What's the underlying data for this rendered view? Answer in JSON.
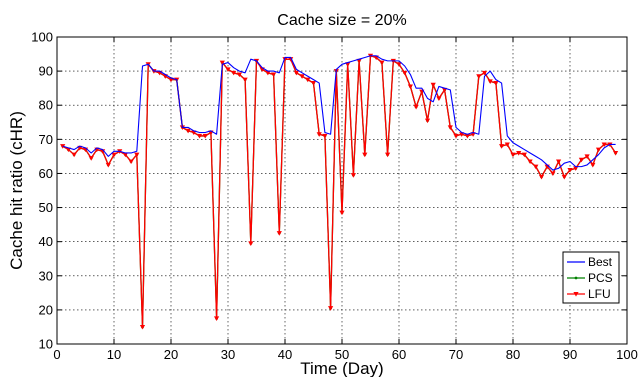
{
  "chart_data": {
    "type": "line",
    "title": "Cache size = 20%",
    "xlabel": "Time (Day)",
    "ylabel": "Cache hit ratio (cHR)",
    "xlim": [
      0,
      100
    ],
    "ylim": [
      10,
      100
    ],
    "xticks": [
      "0",
      "10",
      "20",
      "30",
      "40",
      "50",
      "60",
      "70",
      "80",
      "90",
      "100"
    ],
    "yticks": [
      "10",
      "20",
      "30",
      "40",
      "50",
      "60",
      "70",
      "80",
      "90",
      "100"
    ],
    "grid": true,
    "legend_position": "bottom-right",
    "colors": {
      "Best": "#0000ff",
      "PCS": "#008000",
      "LFU": "#ff0000"
    },
    "x": [
      1,
      2,
      3,
      4,
      5,
      6,
      7,
      8,
      9,
      10,
      11,
      12,
      13,
      14,
      15,
      16,
      17,
      18,
      19,
      20,
      21,
      22,
      23,
      24,
      25,
      26,
      27,
      28,
      29,
      30,
      31,
      32,
      33,
      34,
      35,
      36,
      37,
      38,
      39,
      40,
      41,
      42,
      43,
      44,
      45,
      46,
      47,
      48,
      49,
      50,
      51,
      52,
      53,
      54,
      55,
      56,
      57,
      58,
      59,
      60,
      61,
      62,
      63,
      64,
      65,
      66,
      67,
      68,
      69,
      70,
      71,
      72,
      73,
      74,
      75,
      76,
      77,
      78,
      79,
      80,
      81,
      82,
      83,
      84,
      85,
      86,
      87,
      88,
      89,
      90,
      91,
      92,
      93,
      94,
      95,
      96,
      97,
      98
    ],
    "series": [
      {
        "name": "Best",
        "values": [
          68,
          67.5,
          67,
          68,
          67.5,
          66,
          67.5,
          67,
          65,
          66.5,
          66.5,
          66,
          66,
          66.5,
          91.5,
          92,
          90,
          90,
          89,
          88,
          87.5,
          73.5,
          73.5,
          72.5,
          72,
          72,
          72.5,
          71.5,
          92,
          92.5,
          91,
          90,
          89.5,
          93.5,
          93,
          91,
          90,
          90,
          89.5,
          94,
          94,
          90.5,
          89.5,
          88.5,
          87.5,
          86.5,
          72,
          71.5,
          90.5,
          92,
          92.5,
          93,
          93.5,
          94,
          94.5,
          94.5,
          93.5,
          93,
          93,
          93,
          91.5,
          89,
          85,
          85,
          82,
          81,
          85.5,
          85,
          84.5,
          73.5,
          72,
          71.5,
          72,
          71.5,
          88.5,
          90,
          87.5,
          86.5,
          71,
          69,
          68,
          67,
          66,
          65,
          64,
          62.5,
          61,
          61.5,
          63,
          63.5,
          62,
          62,
          62.5,
          64,
          65.5,
          67.5,
          68.5,
          68.5
        ]
      },
      {
        "name": "PCS",
        "values": [
          68,
          67,
          65.5,
          67.5,
          67,
          64.5,
          67,
          66.5,
          62.5,
          65.5,
          66.5,
          65.5,
          63.5,
          65.5,
          15,
          92,
          90,
          89.5,
          88.5,
          87.5,
          87.5,
          73.5,
          72.5,
          72,
          71,
          71,
          72,
          17.5,
          92.5,
          90.5,
          89.5,
          89,
          87.5,
          39.5,
          93,
          90.5,
          89.5,
          89,
          42.5,
          93.5,
          93.5,
          89.5,
          88.5,
          87.5,
          86.5,
          71.5,
          71,
          20.5,
          90,
          48.5,
          92,
          59.5,
          93,
          65.5,
          94.5,
          94,
          92.5,
          65.5,
          93,
          92,
          89.5,
          85.5,
          79.5,
          84,
          75.5,
          86,
          82,
          84.5,
          73.5,
          71,
          71.5,
          71,
          71.5,
          88.5,
          89.5,
          87,
          86.5,
          68,
          68.5,
          65.5,
          66,
          65.5,
          63.5,
          62,
          59,
          62,
          60,
          63.5,
          59,
          61,
          61.5,
          64,
          65,
          62.5,
          67,
          68.5,
          68.5,
          66
        ]
      },
      {
        "name": "LFU",
        "values": [
          68,
          67,
          65.5,
          67.5,
          67,
          64.5,
          67,
          66.5,
          62.5,
          65.5,
          66.5,
          65.5,
          63.5,
          65.5,
          15,
          92,
          90,
          89.5,
          88.5,
          87.5,
          87.5,
          73.5,
          72.5,
          72,
          71,
          71,
          72,
          17.5,
          92.5,
          90.5,
          89.5,
          89,
          87.5,
          39.5,
          93,
          90.5,
          89.5,
          89,
          42.5,
          93.5,
          93.5,
          89.5,
          88.5,
          87.5,
          86.5,
          71.5,
          71,
          20.5,
          90,
          48.5,
          92,
          59.5,
          93,
          65.5,
          94.5,
          94,
          92.5,
          65.5,
          93,
          92,
          89.5,
          85.5,
          79.5,
          84,
          75.5,
          86,
          82,
          84.5,
          73.5,
          71,
          71.5,
          71,
          71.5,
          88.5,
          89.5,
          87,
          86.5,
          68,
          68.5,
          65.5,
          66,
          65.5,
          63.5,
          62,
          59,
          62,
          60,
          63.5,
          59,
          61,
          61.5,
          64,
          65,
          62.5,
          67,
          68.5,
          68.5,
          66
        ]
      }
    ]
  }
}
